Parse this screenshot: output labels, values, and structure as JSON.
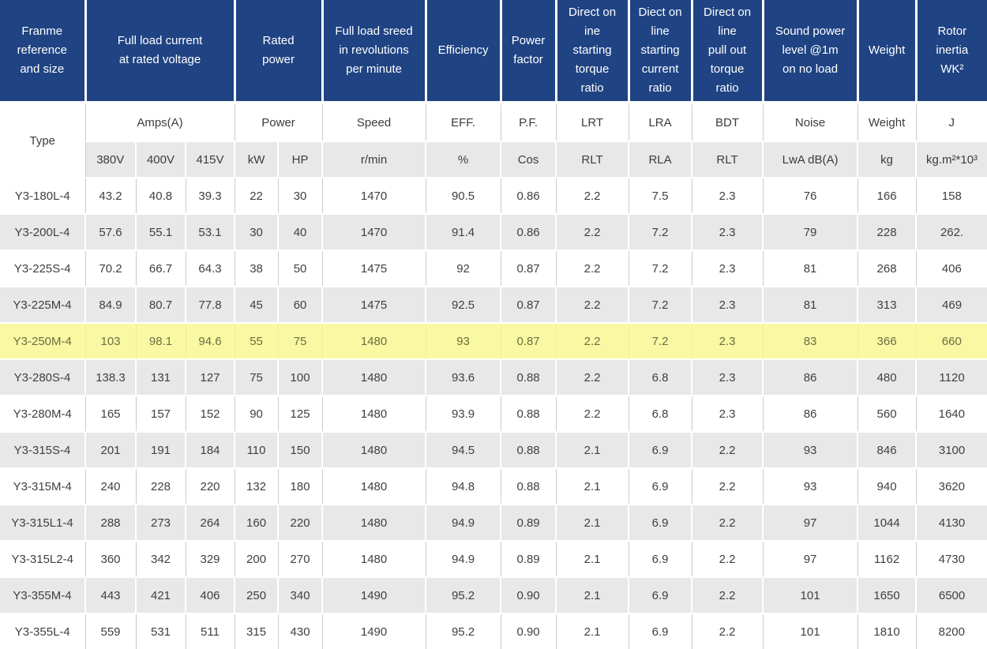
{
  "colors": {
    "header_bg": "#1f4383",
    "header_text": "#ffffff",
    "stripe_bg": "#e8e8e8",
    "highlight_bg": "#f9f9a3",
    "highlight_text": "#6e6e43",
    "body_text": "#404040",
    "subhead_text": "#3c3c3c",
    "border": "#cccccc"
  },
  "chart_data": {
    "type": "table",
    "header_row1": [
      "Franme\nreference\nand size",
      "Full load current\nat rated voltage",
      "Rated\npower",
      "Full load sreed\nin revolutions\nper minute",
      "Efficiency",
      "Power\nfactor",
      "Direct on\nine\nstarting\ntorque\nratio",
      "Diect on\nline\nstarting\ncurrent\nratio",
      "Direct on\nline\npull out\ntorque\nratio",
      "Sound power\nlevel @1m\non no load",
      "Weight",
      "Rotor\ninertia\nWK²"
    ],
    "header_row2": [
      "Type",
      "Amps(A)",
      "Power",
      "Speed",
      "EFF.",
      "P.F.",
      "LRT",
      "LRA",
      "BDT",
      "Noise",
      "Weight",
      "J"
    ],
    "header_row3": [
      "380V",
      "400V",
      "415V",
      "kW",
      "HP",
      "r/min",
      "%",
      "Cos",
      "RLT",
      "RLA",
      "RLT",
      "LwA dB(A)",
      "kg",
      "kg.m²*10³"
    ],
    "highlighted_type": "Y3-250M-4",
    "rows": [
      {
        "type": "Y3-180L-4",
        "highlighted": false,
        "values": [
          "43.2",
          "40.8",
          "39.3",
          "22",
          "30",
          "1470",
          "90.5",
          "0.86",
          "2.2",
          "7.5",
          "2.3",
          "76",
          "166",
          "158"
        ]
      },
      {
        "type": "Y3-200L-4",
        "highlighted": false,
        "values": [
          "57.6",
          "55.1",
          "53.1",
          "30",
          "40",
          "1470",
          "91.4",
          "0.86",
          "2.2",
          "7.2",
          "2.3",
          "79",
          "228",
          "262."
        ]
      },
      {
        "type": "Y3-225S-4",
        "highlighted": false,
        "values": [
          "70.2",
          "66.7",
          "64.3",
          "38",
          "50",
          "1475",
          "92",
          "0.87",
          "2.2",
          "7.2",
          "2.3",
          "81",
          "268",
          "406"
        ]
      },
      {
        "type": "Y3-225M-4",
        "highlighted": false,
        "values": [
          "84.9",
          "80.7",
          "77.8",
          "45",
          "60",
          "1475",
          "92.5",
          "0.87",
          "2.2",
          "7.2",
          "2.3",
          "81",
          "313",
          "469"
        ]
      },
      {
        "type": "Y3-250M-4",
        "highlighted": true,
        "values": [
          "103",
          "98.1",
          "94.6",
          "55",
          "75",
          "1480",
          "93",
          "0.87",
          "2.2",
          "7.2",
          "2.3",
          "83",
          "366",
          "660"
        ]
      },
      {
        "type": "Y3-280S-4",
        "highlighted": false,
        "values": [
          "138.3",
          "131",
          "127",
          "75",
          "100",
          "1480",
          "93.6",
          "0.88",
          "2.2",
          "6.8",
          "2.3",
          "86",
          "480",
          "1120"
        ]
      },
      {
        "type": "Y3-280M-4",
        "highlighted": false,
        "values": [
          "165",
          "157",
          "152",
          "90",
          "125",
          "1480",
          "93.9",
          "0.88",
          "2.2",
          "6.8",
          "2.3",
          "86",
          "560",
          "1640"
        ]
      },
      {
        "type": "Y3-315S-4",
        "highlighted": false,
        "values": [
          "201",
          "191",
          "184",
          "110",
          "150",
          "1480",
          "94.5",
          "0.88",
          "2.1",
          "6.9",
          "2.2",
          "93",
          "846",
          "3100"
        ]
      },
      {
        "type": "Y3-315M-4",
        "highlighted": false,
        "values": [
          "240",
          "228",
          "220",
          "132",
          "180",
          "1480",
          "94.8",
          "0.88",
          "2.1",
          "6.9",
          "2.2",
          "93",
          "940",
          "3620"
        ]
      },
      {
        "type": "Y3-315L1-4",
        "highlighted": false,
        "values": [
          "288",
          "273",
          "264",
          "160",
          "220",
          "1480",
          "94.9",
          "0.89",
          "2.1",
          "6.9",
          "2.2",
          "97",
          "1044",
          "4130"
        ]
      },
      {
        "type": "Y3-315L2-4",
        "highlighted": false,
        "values": [
          "360",
          "342",
          "329",
          "200",
          "270",
          "1480",
          "94.9",
          "0.89",
          "2.1",
          "6.9",
          "2.2",
          "97",
          "1162",
          "4730"
        ]
      },
      {
        "type": "Y3-355M-4",
        "highlighted": false,
        "values": [
          "443",
          "421",
          "406",
          "250",
          "340",
          "1490",
          "95.2",
          "0.90",
          "2.1",
          "6.9",
          "2.2",
          "101",
          "1650",
          "6500"
        ]
      },
      {
        "type": "Y3-355L-4",
        "highlighted": false,
        "values": [
          "559",
          "531",
          "511",
          "315",
          "430",
          "1490",
          "95.2",
          "0.90",
          "2.1",
          "6.9",
          "2.2",
          "101",
          "1810",
          "8200"
        ]
      }
    ]
  }
}
